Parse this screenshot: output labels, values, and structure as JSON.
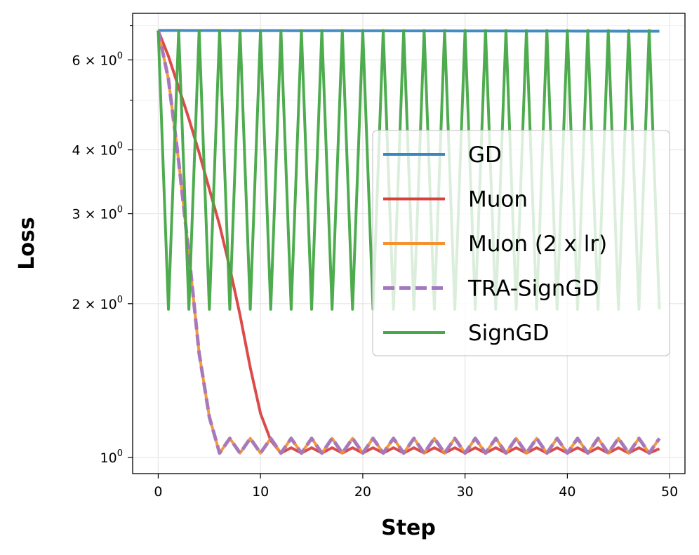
{
  "chart_data": {
    "type": "line",
    "title": "",
    "xlabel": "Step",
    "ylabel": "Loss",
    "yscale": "log",
    "xlim": [
      -2.5,
      51.5
    ],
    "ylim": [
      0.93,
      7.4
    ],
    "grid": true,
    "legend_position": "center-right",
    "xticks": [
      {
        "value": 0,
        "label": "0"
      },
      {
        "value": 10,
        "label": "10"
      },
      {
        "value": 20,
        "label": "20"
      },
      {
        "value": 30,
        "label": "30"
      },
      {
        "value": 40,
        "label": "40"
      },
      {
        "value": 50,
        "label": "50"
      }
    ],
    "yticks": [
      {
        "value": 1,
        "base": "10",
        "sup": "0"
      },
      {
        "value": 2,
        "base": "2 × 10",
        "sup": "0"
      },
      {
        "value": 3,
        "base": "3 × 10",
        "sup": "0"
      },
      {
        "value": 4,
        "base": "4 × 10",
        "sup": "0"
      },
      {
        "value": 6,
        "base": "6 × 10",
        "sup": "0"
      }
    ],
    "minor_yticks": [
      5,
      7
    ],
    "x": [
      0,
      1,
      2,
      3,
      4,
      5,
      6,
      7,
      8,
      9,
      10,
      11,
      12,
      13,
      14,
      15,
      16,
      17,
      18,
      19,
      20,
      21,
      22,
      23,
      24,
      25,
      26,
      27,
      28,
      29,
      30,
      31,
      32,
      33,
      34,
      35,
      36,
      37,
      38,
      39,
      40,
      41,
      42,
      43,
      44,
      45,
      46,
      47,
      48,
      49
    ],
    "series": [
      {
        "name": "GD",
        "color": "#3a86c0",
        "dash": false,
        "values": [
          6.85,
          6.85,
          6.85,
          6.849,
          6.849,
          6.848,
          6.848,
          6.847,
          6.847,
          6.846,
          6.846,
          6.845,
          6.845,
          6.844,
          6.844,
          6.843,
          6.843,
          6.842,
          6.842,
          6.841,
          6.841,
          6.84,
          6.84,
          6.839,
          6.839,
          6.838,
          6.838,
          6.837,
          6.837,
          6.836,
          6.836,
          6.835,
          6.835,
          6.834,
          6.834,
          6.833,
          6.833,
          6.832,
          6.832,
          6.831,
          6.831,
          6.83,
          6.83,
          6.829,
          6.829,
          6.828,
          6.828,
          6.827,
          6.827,
          6.826
        ]
      },
      {
        "name": "Muon",
        "color": "#d9413f",
        "dash": false,
        "values": [
          6.85,
          6.1,
          5.3,
          4.6,
          3.95,
          3.35,
          2.85,
          2.35,
          1.9,
          1.5,
          1.22,
          1.08,
          1.02,
          1.045,
          1.02,
          1.045,
          1.02,
          1.045,
          1.02,
          1.045,
          1.02,
          1.045,
          1.02,
          1.045,
          1.02,
          1.045,
          1.02,
          1.045,
          1.02,
          1.045,
          1.02,
          1.045,
          1.02,
          1.045,
          1.02,
          1.045,
          1.02,
          1.045,
          1.02,
          1.045,
          1.02,
          1.045,
          1.02,
          1.045,
          1.02,
          1.045,
          1.02,
          1.045,
          1.02,
          1.04
        ]
      },
      {
        "name": "Muon (2 x lr)",
        "color": "#f5922f",
        "dash": false,
        "values": [
          6.85,
          5.5,
          3.8,
          2.5,
          1.6,
          1.2,
          1.02,
          1.09,
          1.02,
          1.09,
          1.02,
          1.09,
          1.02,
          1.09,
          1.02,
          1.09,
          1.02,
          1.09,
          1.02,
          1.09,
          1.02,
          1.09,
          1.02,
          1.09,
          1.02,
          1.09,
          1.02,
          1.09,
          1.02,
          1.09,
          1.02,
          1.09,
          1.02,
          1.09,
          1.02,
          1.09,
          1.02,
          1.09,
          1.02,
          1.09,
          1.02,
          1.09,
          1.02,
          1.09,
          1.02,
          1.09,
          1.02,
          1.09,
          1.02,
          1.09
        ]
      },
      {
        "name": "TRA-SignGD",
        "color": "#a277bf",
        "dash": true,
        "values": [
          6.85,
          5.5,
          3.8,
          2.5,
          1.6,
          1.2,
          1.02,
          1.09,
          1.02,
          1.09,
          1.02,
          1.09,
          1.02,
          1.09,
          1.02,
          1.09,
          1.02,
          1.09,
          1.02,
          1.09,
          1.02,
          1.09,
          1.02,
          1.09,
          1.02,
          1.09,
          1.02,
          1.09,
          1.02,
          1.09,
          1.02,
          1.09,
          1.02,
          1.09,
          1.02,
          1.09,
          1.02,
          1.09,
          1.02,
          1.09,
          1.02,
          1.09,
          1.02,
          1.09,
          1.02,
          1.09,
          1.02,
          1.09,
          1.02,
          1.09
        ]
      },
      {
        "name": "SignGD",
        "color": "#45a846",
        "dash": false,
        "values": [
          6.85,
          1.95,
          6.85,
          1.95,
          6.85,
          1.95,
          6.85,
          1.95,
          6.85,
          1.95,
          6.85,
          1.95,
          6.85,
          1.95,
          6.85,
          1.95,
          6.85,
          1.95,
          6.85,
          1.95,
          6.85,
          1.95,
          6.85,
          1.95,
          6.85,
          1.95,
          6.85,
          1.95,
          6.85,
          1.95,
          6.85,
          1.95,
          6.85,
          1.95,
          6.85,
          1.95,
          6.85,
          1.95,
          6.85,
          1.95,
          6.85,
          1.95,
          6.85,
          1.95,
          6.85,
          1.95,
          6.85,
          1.95,
          6.85,
          1.95
        ]
      }
    ]
  }
}
